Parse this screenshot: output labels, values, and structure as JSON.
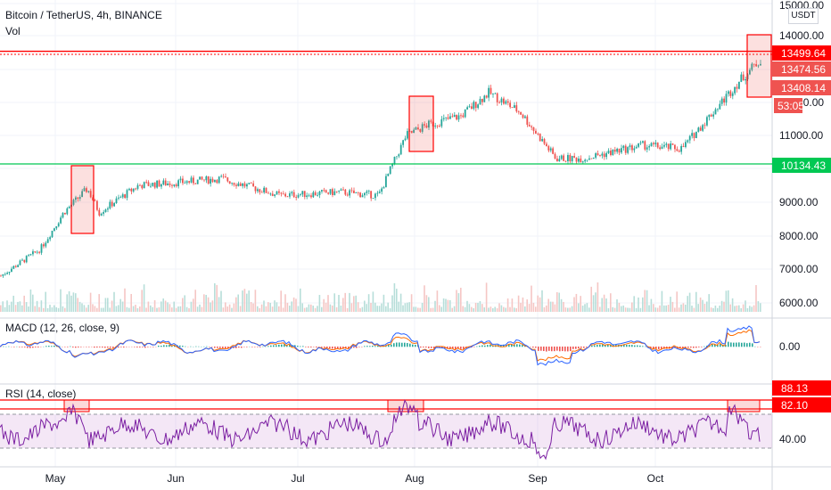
{
  "header": {
    "title": "Bitcoin / TetherUS, 4h, BINANCE",
    "vol_label": "Vol",
    "macd_label": "MACD (12, 26, close, 9)",
    "rsi_label": "RSI (14, close)",
    "currency": "USDT"
  },
  "colors": {
    "up": "#26a69a",
    "down": "#ef5350",
    "resistance": "#ff0000",
    "support": "#00c853",
    "macd": "#2962ff",
    "signal": "#ff6d00",
    "rsi": "#7b1fa2",
    "rsi_band": "#e1bee7"
  },
  "price_axis": {
    "ticks": [
      "15000.00",
      "14000.00",
      "12000.00",
      "11000.00",
      "10000.00",
      "9000.00",
      "8000.00",
      "7000.00",
      "6000.00"
    ],
    "tags": [
      {
        "label": "13499.64",
        "color": "#ff0000"
      },
      {
        "label": "13474.56",
        "color": "#ef5350"
      },
      {
        "label": "13408.14",
        "color": "#ef5350"
      },
      {
        "label": "53:05",
        "color": "#ef5350"
      },
      {
        "label": "10134.43",
        "color": "#00c853"
      }
    ]
  },
  "macd_axis": {
    "ticks": [
      "0.00"
    ]
  },
  "rsi_axis": {
    "ticks": [
      "40.00"
    ],
    "tags": [
      {
        "label": "88.13",
        "color": "#ff0000"
      },
      {
        "label": "82.10",
        "color": "#ff0000"
      }
    ]
  },
  "time_axis": {
    "labels": [
      "May",
      "Jun",
      "Jul",
      "Aug",
      "Sep",
      "Oct"
    ]
  },
  "chart_data": {
    "type": "line",
    "title": "Bitcoin / TetherUS, 4h, BINANCE",
    "x": [
      "2020-04-15",
      "2020-04-25",
      "2020-05-01",
      "2020-05-07",
      "2020-05-10",
      "2020-05-20",
      "2020-06-01",
      "2020-06-10",
      "2020-06-25",
      "2020-07-10",
      "2020-07-20",
      "2020-07-27",
      "2020-08-01",
      "2020-08-10",
      "2020-08-17",
      "2020-08-25",
      "2020-09-03",
      "2020-09-10",
      "2020-09-25",
      "2020-10-05",
      "2020-10-10",
      "2020-10-20",
      "2020-10-25"
    ],
    "series": [
      {
        "values": [
          6800,
          7600,
          8700,
          9400,
          8700,
          9500,
          9600,
          9700,
          9200,
          9300,
          9200,
          11000,
          11300,
          11600,
          12300,
          11700,
          10300,
          10300,
          10700,
          10600,
          11300,
          12700,
          13300
        ]
      }
    ],
    "ylim": [
      6000,
      15000
    ],
    "horizontal_levels": {
      "resistance": 13499.64,
      "support": 10134.43
    },
    "last_price": 13474.56,
    "rsi": {
      "upper_level": 88.13,
      "level2": 82.1,
      "visible_tick": 40
    },
    "grid": true
  }
}
